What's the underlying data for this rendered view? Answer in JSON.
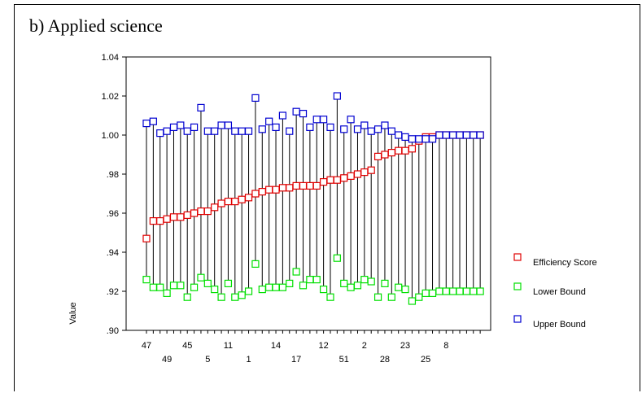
{
  "title": "b) Applied science",
  "chart_data": {
    "type": "scatter",
    "ylabel": "Value",
    "xlabel": "",
    "ylim": [
      0.9,
      1.04
    ],
    "yticks": [
      ".90",
      ".92",
      ".94",
      ".96",
      ".98",
      "1.00",
      "1.02",
      "1.04"
    ],
    "xtick_labels_row1": [
      "47",
      "45",
      "11",
      "14",
      "12",
      "2",
      "23",
      "8"
    ],
    "xtick_labels_row2": [
      "49",
      "5",
      "1",
      "17",
      "51",
      "28",
      "25"
    ],
    "xtick_row1_positions": [
      1,
      7,
      13,
      20,
      27,
      33,
      39,
      45
    ],
    "xtick_row2_positions": [
      4,
      10,
      16,
      23,
      30,
      36,
      42
    ],
    "n_points": 50,
    "legend_position": "right",
    "series": [
      {
        "name": "Efficiency Score",
        "color": "#e00000",
        "values": [
          0.947,
          0.956,
          0.956,
          0.957,
          0.958,
          0.958,
          0.959,
          0.96,
          0.961,
          0.961,
          0.963,
          0.965,
          0.966,
          0.966,
          0.967,
          0.968,
          0.97,
          0.971,
          0.972,
          0.972,
          0.973,
          0.973,
          0.974,
          0.974,
          0.974,
          0.974,
          0.976,
          0.977,
          0.977,
          0.978,
          0.979,
          0.98,
          0.981,
          0.982,
          0.989,
          0.99,
          0.991,
          0.992,
          0.992,
          0.993,
          0.997,
          0.999,
          0.999,
          1.0,
          1.0,
          1.0,
          1.0,
          1.0,
          1.0,
          1.0
        ]
      },
      {
        "name": "Lower Bound",
        "color": "#00e000",
        "values": [
          0.926,
          0.922,
          0.922,
          0.919,
          0.923,
          0.923,
          0.917,
          0.922,
          0.927,
          0.924,
          0.921,
          0.917,
          0.924,
          0.917,
          0.918,
          0.92,
          0.934,
          0.921,
          0.922,
          0.922,
          0.922,
          0.924,
          0.93,
          0.923,
          0.926,
          0.926,
          0.921,
          0.917,
          0.937,
          0.924,
          0.922,
          0.923,
          0.926,
          0.925,
          0.917,
          0.924,
          0.917,
          0.922,
          0.921,
          0.915,
          0.917,
          0.919,
          0.919,
          0.92,
          0.92,
          0.92,
          0.92,
          0.92,
          0.92,
          0.92
        ]
      },
      {
        "name": "Upper Bound",
        "color": "#0000d0",
        "values": [
          1.006,
          1.007,
          1.001,
          1.002,
          1.004,
          1.005,
          1.002,
          1.004,
          1.014,
          1.002,
          1.002,
          1.005,
          1.005,
          1.002,
          1.002,
          1.002,
          1.019,
          1.003,
          1.007,
          1.004,
          1.01,
          1.002,
          1.012,
          1.011,
          1.004,
          1.008,
          1.008,
          1.004,
          1.02,
          1.003,
          1.008,
          1.003,
          1.005,
          1.002,
          1.003,
          1.005,
          1.002,
          1.0,
          0.999,
          0.998,
          0.998,
          0.998,
          0.998,
          1.0,
          1.0,
          1.0,
          1.0,
          1.0,
          1.0,
          1.0
        ]
      }
    ]
  }
}
